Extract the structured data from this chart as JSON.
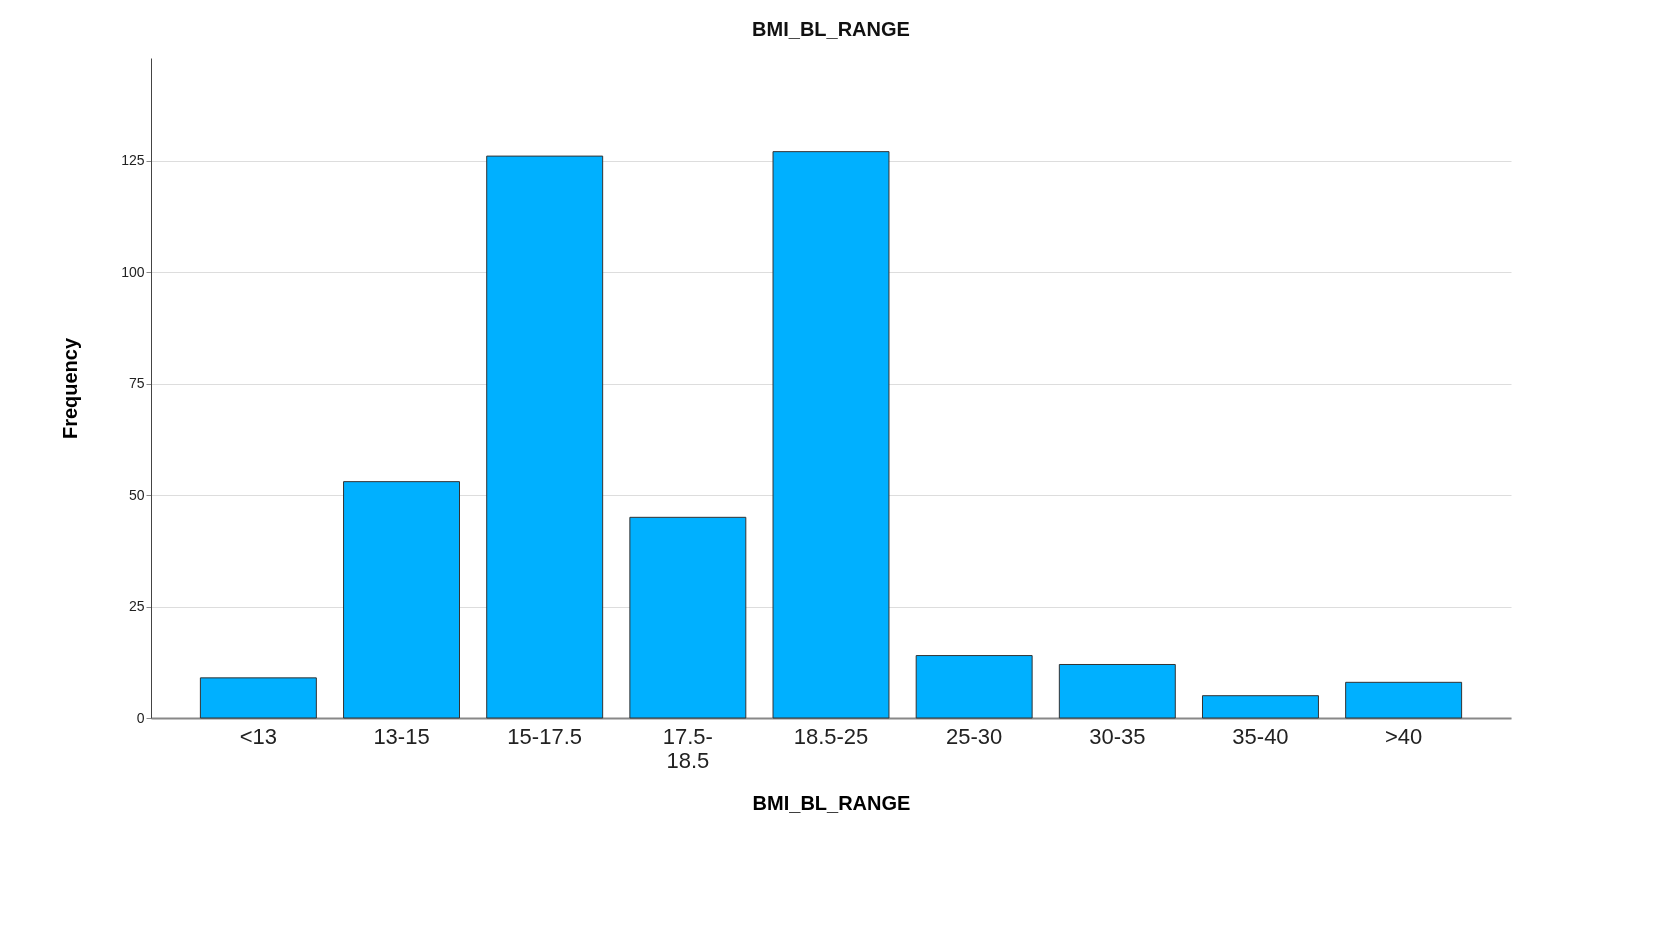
{
  "chart_data": {
    "type": "bar",
    "title": "BMI_BL_RANGE",
    "xlabel": "BMI_BL_RANGE",
    "ylabel": "Frequency",
    "categories": [
      "<13",
      "13-15",
      "15-17.5",
      "17.5-18.5",
      "18.5-25",
      "25-30",
      "30-35",
      "35-40",
      ">40"
    ],
    "values": [
      9,
      53,
      126,
      45,
      127,
      14,
      12,
      5,
      8
    ],
    "color": "#00b0ff",
    "ylim": [
      0,
      148
    ],
    "yticks": [
      0,
      25,
      50,
      75,
      100,
      125
    ],
    "grid": "y"
  }
}
